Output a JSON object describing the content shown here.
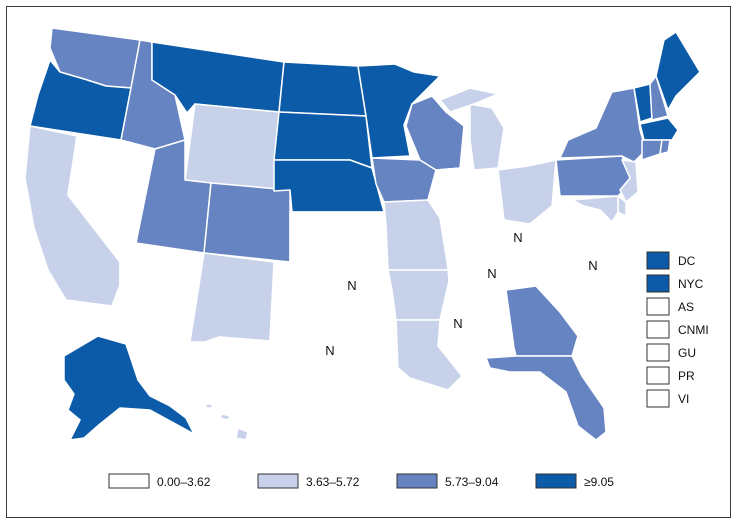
{
  "colors": {
    "c0": "#ffffff",
    "c1": "#c7d2ea",
    "c2": "#6683c2",
    "c3": "#0b5ba8",
    "outline": "#3a3a3a"
  },
  "legend": {
    "bins": [
      {
        "label": "0.00–3.62",
        "class": "c0"
      },
      {
        "label": "3.63–5.72",
        "class": "c1"
      },
      {
        "label": "5.73–9.04",
        "class": "c2"
      },
      {
        "label": "≥9.05",
        "class": "c3"
      }
    ]
  },
  "territories": [
    {
      "label": "DC",
      "class": "c3"
    },
    {
      "label": "NYC",
      "class": "c3"
    },
    {
      "label": "AS",
      "class": "c0"
    },
    {
      "label": "CNMI",
      "class": "c0"
    },
    {
      "label": "GU",
      "class": "c0"
    },
    {
      "label": "PR",
      "class": "c0"
    },
    {
      "label": "VI",
      "class": "c0"
    }
  ],
  "not_reported_mark": "N",
  "states": {
    "WA": "c2",
    "OR": "c3",
    "CA": "c1",
    "NV": "c0",
    "ID": "c2",
    "MT": "c3",
    "WY": "c1",
    "UT": "c2",
    "AZ": "c0",
    "CO": "c2",
    "NM": "c1",
    "ND": "c3",
    "SD": "c3",
    "NE": "c3",
    "KS": "c0",
    "OK": "c0",
    "TX": "c0",
    "MN": "c3",
    "IA": "c2",
    "MO": "c1",
    "AR": "c1",
    "LA": "c1",
    "WI": "c2",
    "IL": "c0",
    "MI": "c1",
    "IN": "c0",
    "OH": "c1",
    "KY": "c0",
    "TN": "c0",
    "MS": "c0",
    "AL": "c0",
    "GA": "c2",
    "FL": "c2",
    "SC": "c0",
    "NC": "c0",
    "VA": "c0",
    "WV": "c0",
    "PA": "c2",
    "NY": "c2",
    "VT": "c3",
    "NH": "c2",
    "ME": "c3",
    "MA": "c3",
    "CT": "c2",
    "RI": "c2",
    "NJ": "c1",
    "DE": "c1",
    "MD": "c1",
    "AK": "c3",
    "HI": "c1"
  },
  "not_reported_states": [
    "OK",
    "TX",
    "KY",
    "TN",
    "NC",
    "MS"
  ]
}
